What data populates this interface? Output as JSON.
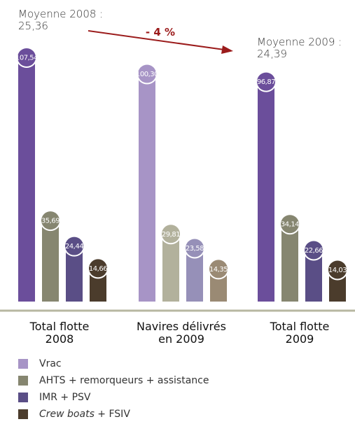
{
  "annotations": {
    "avg_2008_title": "Moyenne 2008 :",
    "avg_2008_value": "25,36",
    "avg_2009_title": "Moyenne 2009 :",
    "avg_2009_value": "24,39",
    "change": "- 4 %"
  },
  "colors": {
    "vrac_dark": "#6b4e9b",
    "vrac_light": "#a794c6",
    "ahts_dark": "#868670",
    "ahts_light": "#b2b19c",
    "imr_dark": "#5a4e86",
    "imr_light": "#9690b8",
    "crew_dark": "#4b3c2c",
    "crew_light": "#9a8a74",
    "arrow": "#9b1b1b",
    "baseline": "#b7b7a1"
  },
  "chart_data": {
    "type": "bar",
    "categories": [
      "Total flotte 2008",
      "Navires délivrés en 2009",
      "Total flotte 2009"
    ],
    "category_lines": [
      [
        "Total flotte",
        "2008"
      ],
      [
        "Navires délivrés",
        "en 2009"
      ],
      [
        "Total flotte",
        "2009"
      ]
    ],
    "series": [
      {
        "name": "Vrac",
        "values": [
          107.54,
          100.3,
          96.87
        ],
        "labels": [
          "107,54",
          "100,30",
          "96,87"
        ]
      },
      {
        "name": "AHTS + remorqueurs + assistance",
        "values": [
          35.69,
          29.81,
          34.14
        ],
        "labels": [
          "35,69",
          "29,81",
          "34,14"
        ]
      },
      {
        "name": "IMR + PSV",
        "values": [
          24.44,
          23.58,
          22.66
        ],
        "labels": [
          "24,44",
          "23,58",
          "22,66"
        ]
      },
      {
        "name": "Crew boats + FSIV",
        "values": [
          14.66,
          14.35,
          14.03
        ],
        "labels": [
          "14,66",
          "14,35",
          "14,03"
        ]
      }
    ],
    "ylim": [
      0,
      120
    ],
    "grid": false,
    "legend_position": "bottom"
  },
  "legend": [
    {
      "label": "Vrac"
    },
    {
      "label": "AHTS + remorqueurs + assistance"
    },
    {
      "label": "IMR + PSV"
    },
    {
      "label_italic": "Crew boats",
      "label_rest": " + FSIV"
    }
  ]
}
